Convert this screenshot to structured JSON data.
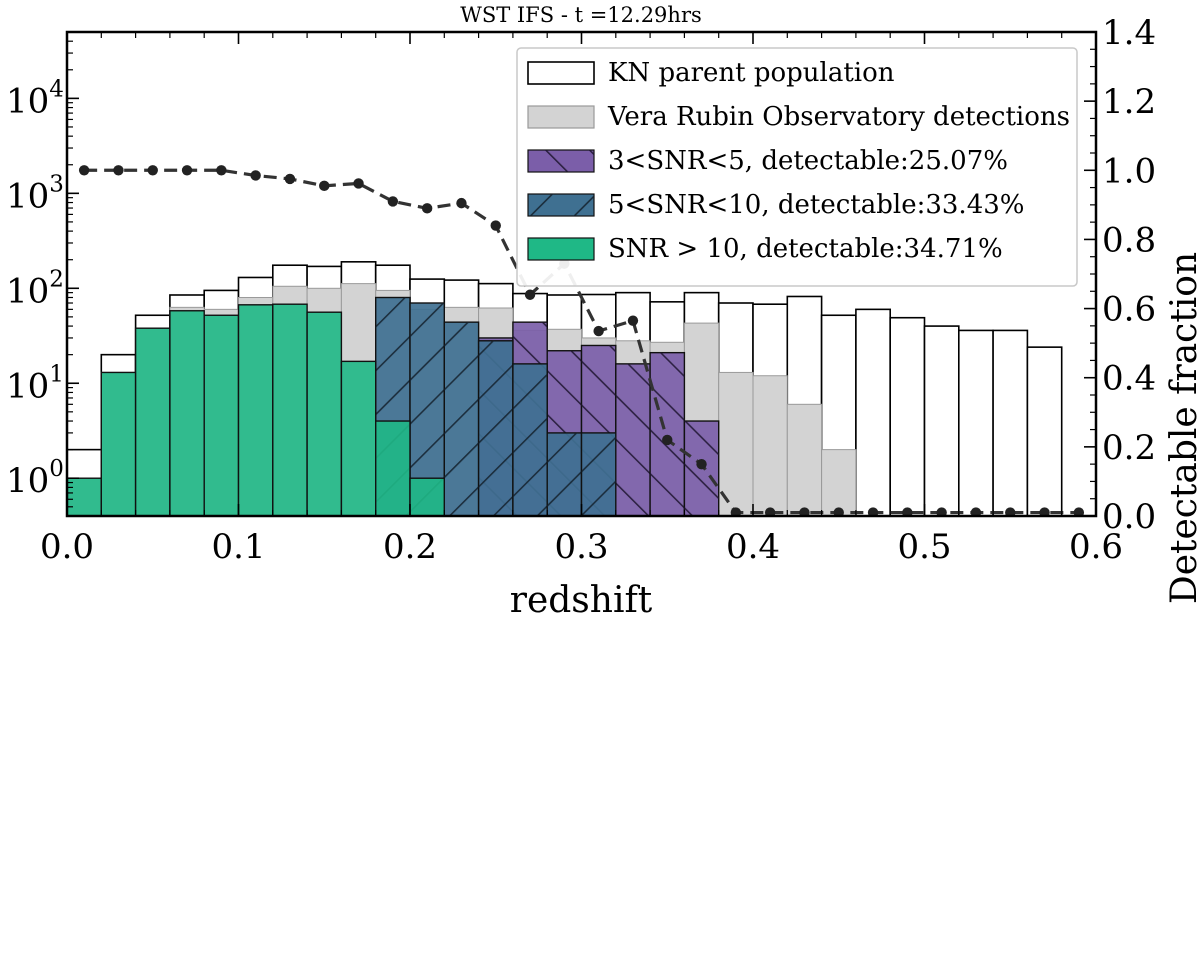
{
  "chart_data": {
    "type": "bar",
    "title": "WST IFS - t =12.29hrs",
    "xlabel": "redshift",
    "ylabel_left": "",
    "ylabel_right": "Detectable fraction",
    "xlim": [
      0.0,
      0.6
    ],
    "ylim_left": [
      0.4,
      50000
    ],
    "yscale_left": "log",
    "ylim_right": [
      0.0,
      1.4
    ],
    "x_ticks": [
      {
        "value": 0.0,
        "label": "0.0"
      },
      {
        "value": 0.1,
        "label": "0.1"
      },
      {
        "value": 0.2,
        "label": "0.2"
      },
      {
        "value": 0.3,
        "label": "0.3"
      },
      {
        "value": 0.4,
        "label": "0.4"
      },
      {
        "value": 0.5,
        "label": "0.5"
      },
      {
        "value": 0.6,
        "label": "0.6"
      }
    ],
    "y_left_ticks": [
      {
        "value": 1,
        "base": "10",
        "exp": "0"
      },
      {
        "value": 10,
        "base": "10",
        "exp": "1"
      },
      {
        "value": 100,
        "base": "10",
        "exp": "2"
      },
      {
        "value": 1000,
        "base": "10",
        "exp": "3"
      },
      {
        "value": 10000,
        "base": "10",
        "exp": "4"
      }
    ],
    "y_right_ticks": [
      {
        "value": 0.0,
        "label": "0.0"
      },
      {
        "value": 0.2,
        "label": "0.2"
      },
      {
        "value": 0.4,
        "label": "0.4"
      },
      {
        "value": 0.6,
        "label": "0.6"
      },
      {
        "value": 0.8,
        "label": "0.8"
      },
      {
        "value": 1.0,
        "label": "1.0"
      },
      {
        "value": 1.2,
        "label": "1.2"
      },
      {
        "value": 1.4,
        "label": "1.4"
      }
    ],
    "bin_edges": [
      0.0,
      0.02,
      0.04,
      0.06,
      0.08,
      0.1,
      0.12,
      0.14,
      0.16,
      0.18,
      0.2,
      0.22,
      0.24,
      0.26,
      0.28,
      0.3,
      0.32,
      0.34,
      0.36,
      0.38,
      0.4,
      0.42,
      0.44,
      0.46,
      0.48,
      0.5,
      0.52,
      0.54,
      0.56,
      0.58,
      0.6
    ],
    "series": [
      {
        "name": "KN parent population",
        "style": "outline",
        "color": "#ffffff",
        "values": [
          2,
          20,
          52,
          85,
          95,
          130,
          175,
          170,
          190,
          175,
          125,
          122,
          112,
          88,
          85,
          86,
          90,
          72,
          90,
          70,
          68,
          82,
          52,
          60,
          49,
          40,
          36,
          36,
          24,
          0
        ]
      },
      {
        "name": "Vera Rubin Observatory detections",
        "style": "filled",
        "color": "#d3d3d3",
        "values": [
          1,
          13,
          38,
          63,
          60,
          80,
          105,
          100,
          112,
          95,
          60,
          63,
          62,
          36,
          37,
          30,
          28,
          27,
          43,
          13,
          12,
          6,
          2,
          0,
          0,
          0,
          0,
          0,
          0,
          0
        ]
      },
      {
        "name": "3<SNR<5, detectable:25.07%",
        "style": "hatch-backslash",
        "color": "#7b5ea9",
        "values": [
          0,
          0,
          0,
          0,
          0,
          0,
          0,
          0,
          0,
          0,
          0,
          0,
          30,
          44,
          22,
          25,
          16,
          21,
          4,
          0,
          0,
          0,
          0,
          0,
          0,
          0,
          0,
          0,
          0,
          0
        ]
      },
      {
        "name": "5<SNR<10, detectable:33.43%",
        "style": "hatch-slash",
        "color": "#3f7091",
        "values": [
          0,
          0,
          0,
          0,
          0,
          0,
          0,
          0,
          0,
          80,
          70,
          44,
          28,
          16,
          3,
          3,
          0,
          0,
          0,
          0,
          0,
          0,
          0,
          0,
          0,
          0,
          0,
          0,
          0,
          0
        ]
      },
      {
        "name": "SNR > 10, detectable:34.71%",
        "style": "filled",
        "color": "#1fb886",
        "values": [
          1,
          13,
          38,
          58,
          52,
          67,
          68,
          56,
          17,
          4,
          1,
          0,
          0,
          0,
          0,
          0,
          0,
          0,
          0,
          0,
          0,
          0,
          0,
          0,
          0,
          0,
          0,
          0,
          0,
          0
        ]
      }
    ],
    "fraction_line": {
      "color": "#333333",
      "x": [
        0.01,
        0.03,
        0.05,
        0.07,
        0.09,
        0.11,
        0.13,
        0.15,
        0.17,
        0.19,
        0.21,
        0.23,
        0.25,
        0.27,
        0.29,
        0.31,
        0.33,
        0.35,
        0.37,
        0.39,
        0.41,
        0.43,
        0.45,
        0.47,
        0.49,
        0.51,
        0.53,
        0.55,
        0.57,
        0.59
      ],
      "y": [
        1.0,
        1.0,
        1.0,
        1.0,
        1.0,
        0.985,
        0.975,
        0.955,
        0.962,
        0.91,
        0.89,
        0.905,
        0.84,
        0.64,
        0.73,
        0.535,
        0.565,
        0.22,
        0.15,
        0.01,
        0.01,
        0.01,
        0.01,
        0.01,
        0.01,
        0.01,
        0.01,
        0.01,
        0.01,
        0.01
      ]
    },
    "legend_position": "top-right",
    "grid": false
  }
}
